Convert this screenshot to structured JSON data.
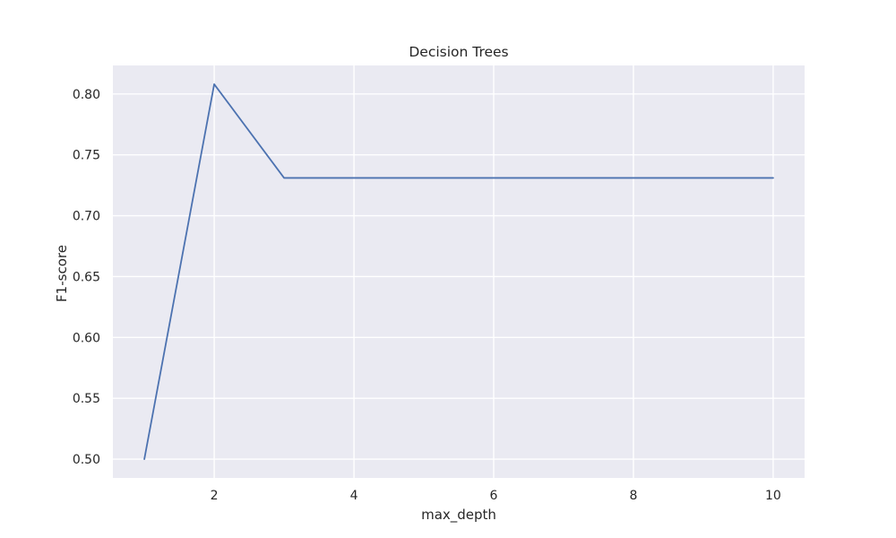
{
  "chart_data": {
    "type": "line",
    "title": "Decision Trees",
    "xlabel": "max_depth",
    "ylabel": "F1-score",
    "x": [
      1,
      2,
      3,
      4,
      5,
      6,
      7,
      8,
      9,
      10
    ],
    "series": [
      {
        "values": [
          0.5,
          0.808,
          0.731,
          0.731,
          0.731,
          0.731,
          0.731,
          0.731,
          0.731,
          0.731
        ],
        "color": "#4c72b0"
      }
    ],
    "xlim": [
      0.55,
      10.45
    ],
    "ylim": [
      0.4846,
      0.8234
    ],
    "xticks": [
      2,
      4,
      6,
      8,
      10
    ],
    "xtick_labels": [
      "2",
      "4",
      "6",
      "8",
      "10"
    ],
    "yticks": [
      0.5,
      0.55,
      0.6,
      0.65,
      0.7,
      0.75,
      0.8
    ],
    "ytick_labels": [
      "0.50",
      "0.55",
      "0.60",
      "0.65",
      "0.70",
      "0.75",
      "0.80"
    ],
    "grid": true,
    "legend": "none",
    "background_color": "#eaeaf2",
    "grid_color": "#ffffff"
  }
}
